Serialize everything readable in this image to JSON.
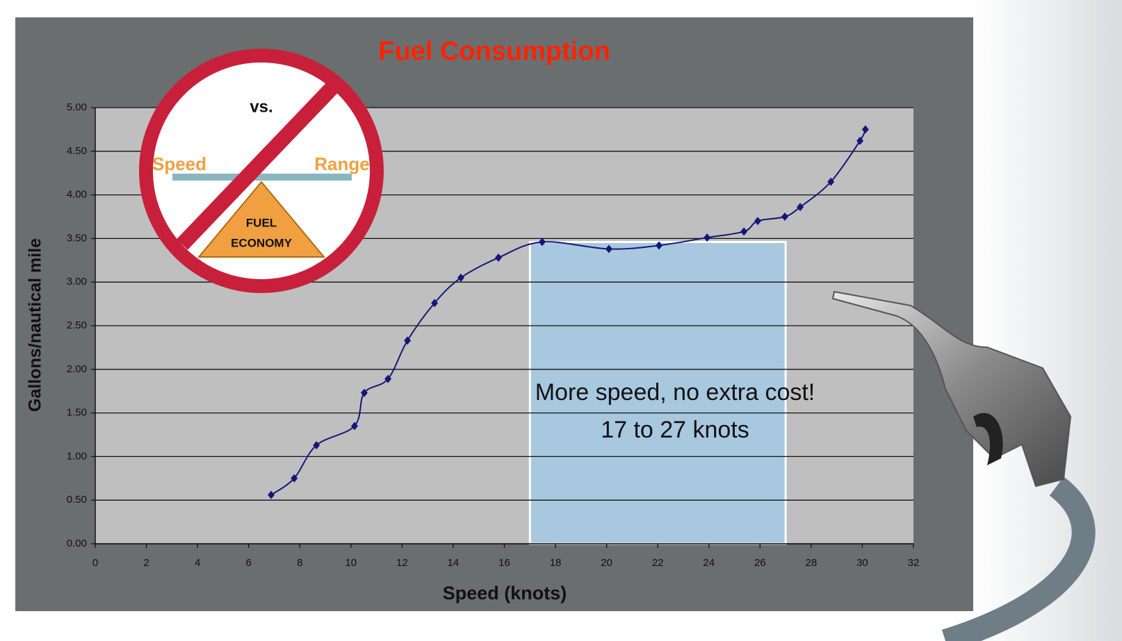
{
  "chart_data": {
    "type": "line",
    "title": "Fuel Consumption",
    "xlabel": "Speed (knots)",
    "ylabel": "Gallons/nautical mile",
    "x": [
      6.88,
      7.78,
      8.65,
      10.14,
      10.52,
      11.45,
      12.21,
      13.27,
      14.3,
      15.77,
      17.48,
      20.09,
      22.05,
      23.93,
      25.37,
      25.91,
      26.97,
      27.57,
      28.77,
      29.91,
      30.12
    ],
    "values": [
      0.56,
      0.75,
      1.13,
      1.35,
      1.73,
      1.89,
      2.33,
      2.76,
      3.05,
      3.28,
      3.46,
      3.38,
      3.42,
      3.51,
      3.58,
      3.7,
      3.75,
      3.86,
      4.15,
      4.62,
      4.75
    ],
    "color": "#16167a",
    "xlim": [
      0,
      32
    ],
    "xticks": [
      0,
      2,
      4,
      6,
      8,
      10,
      12,
      14,
      16,
      18,
      20,
      22,
      24,
      26,
      28,
      30,
      32
    ],
    "ylim": [
      0,
      5
    ],
    "yticks": [
      {
        "value": 0,
        "label": "0.00"
      },
      {
        "value": 0.5,
        "label": "0.50"
      },
      {
        "value": 1,
        "label": "1.00"
      },
      {
        "value": 1.5,
        "label": "1.50"
      },
      {
        "value": 2,
        "label": "2.00"
      },
      {
        "value": 2.5,
        "label": "2.50"
      },
      {
        "value": 3,
        "label": "3.00"
      },
      {
        "value": 3.5,
        "label": "3.50"
      },
      {
        "value": 4,
        "label": "4.00"
      },
      {
        "value": 4.5,
        "label": "4.50"
      },
      {
        "value": 5,
        "label": "5.00"
      }
    ],
    "grid": true,
    "highlight": [
      17,
      27
    ],
    "highlight_color": "#a8c8df",
    "annotation": [
      "More speed, no extra cost!",
      "17 to 27 knots"
    ],
    "inset": {
      "top": "vs.",
      "left": "Speed",
      "right": "Range",
      "center": [
        "FUEL",
        "ECONOMY"
      ]
    }
  }
}
